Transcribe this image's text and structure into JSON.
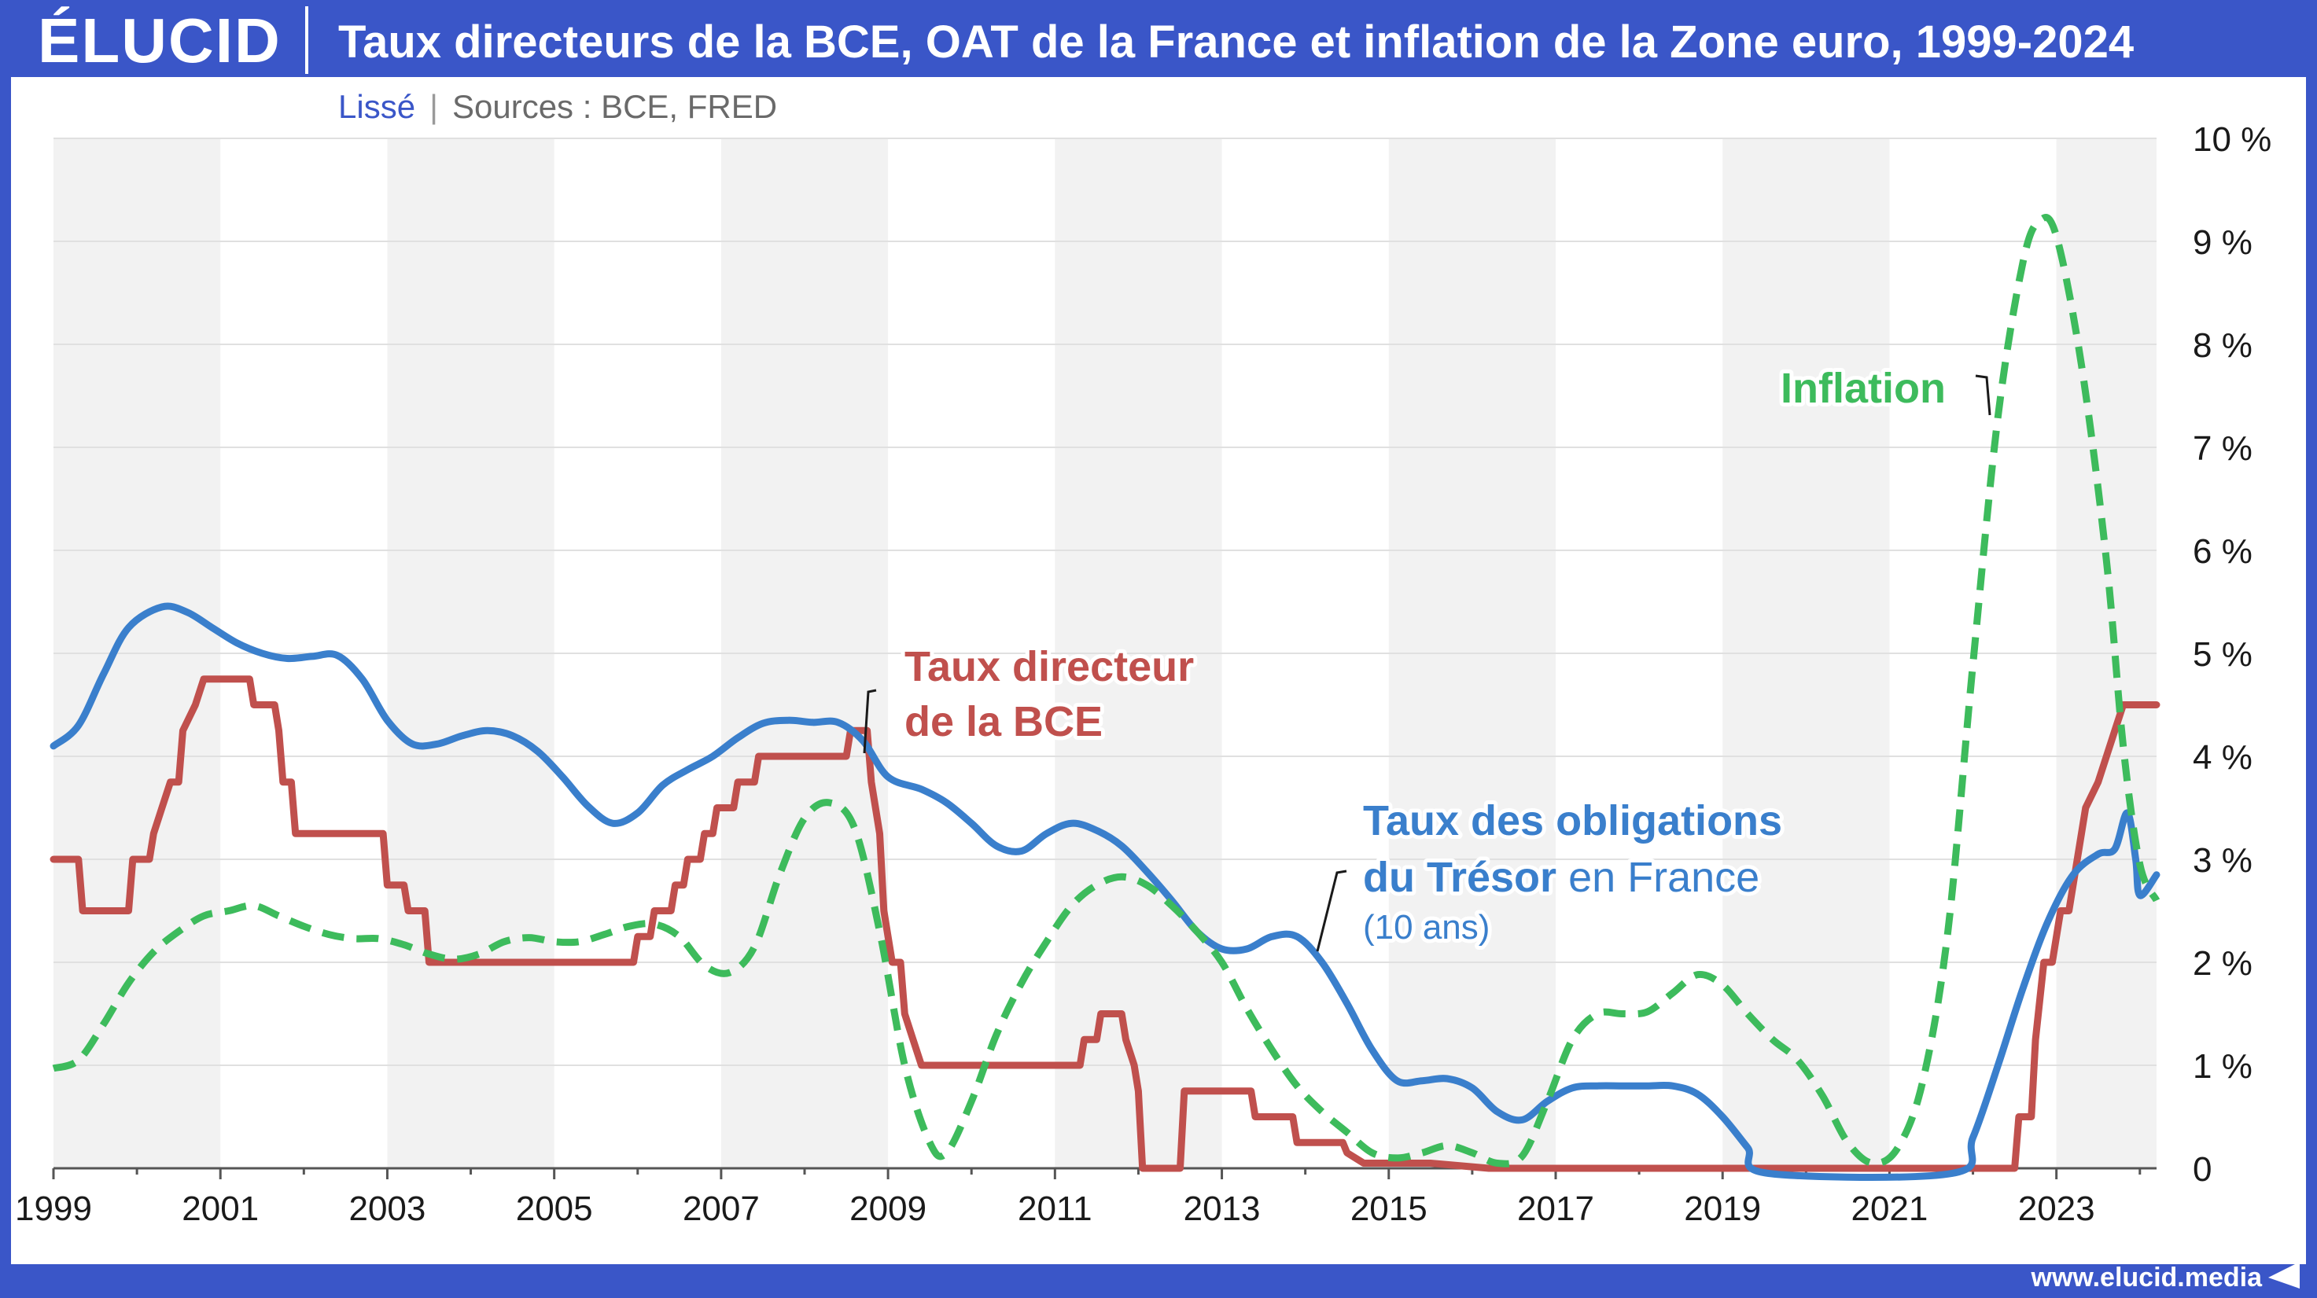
{
  "header": {
    "logo": "ÉLUCID",
    "title": "Taux directeurs de la BCE, OAT de la France et inflation de la Zone euro, 1999-2024"
  },
  "subtitle": {
    "smoothing": "Lissé",
    "sources": "Sources : BCE, FRED"
  },
  "footer": {
    "url": "www.elucid.media"
  },
  "colors": {
    "brand": "#3a56c8",
    "ecb": "#c0504d",
    "oat": "#3a7fcc",
    "inflation": "#3dbb5c",
    "band": "#f2f2f2"
  },
  "annotations": {
    "ecb_line1": "Taux directeur",
    "ecb_line2": "de la BCE",
    "oat_line1": "Taux des obligations",
    "oat_line2_bold": "du Trésor",
    "oat_line2_rest": " en France",
    "oat_line3": "(10 ans)",
    "inflation": "Inflation"
  },
  "chart_data": {
    "type": "line",
    "title": "Taux directeurs de la BCE, OAT de la France et inflation de la Zone euro, 1999-2024",
    "x_ticks": [
      "1999",
      "2001",
      "2003",
      "2005",
      "2007",
      "2009",
      "2011",
      "2013",
      "2015",
      "2017",
      "2019",
      "2021",
      "2023"
    ],
    "y_ticks": [
      "0",
      "1 %",
      "2 %",
      "3 %",
      "4 %",
      "5 %",
      "6 %",
      "7 %",
      "8 %",
      "9 %",
      "10 %"
    ],
    "xlim": [
      1999,
      2024.2
    ],
    "ylim": [
      0,
      10
    ],
    "y_axis_side": "right",
    "grid": "horizontal",
    "series": [
      {
        "name": "Taux directeur de la BCE",
        "style": "step",
        "points": [
          [
            1999,
            3.0
          ],
          [
            1999.3,
            3.0
          ],
          [
            1999.35,
            2.5
          ],
          [
            1999.9,
            2.5
          ],
          [
            1999.95,
            3.0
          ],
          [
            2000.15,
            3.0
          ],
          [
            2000.2,
            3.25
          ],
          [
            2000.3,
            3.5
          ],
          [
            2000.4,
            3.75
          ],
          [
            2000.5,
            3.75
          ],
          [
            2000.55,
            4.25
          ],
          [
            2000.7,
            4.5
          ],
          [
            2000.8,
            4.75
          ],
          [
            2001.35,
            4.75
          ],
          [
            2001.4,
            4.5
          ],
          [
            2001.65,
            4.5
          ],
          [
            2001.7,
            4.25
          ],
          [
            2001.75,
            3.75
          ],
          [
            2001.85,
            3.75
          ],
          [
            2001.9,
            3.25
          ],
          [
            2002.95,
            3.25
          ],
          [
            2003.0,
            2.75
          ],
          [
            2003.2,
            2.75
          ],
          [
            2003.25,
            2.5
          ],
          [
            2003.45,
            2.5
          ],
          [
            2003.5,
            2.0
          ],
          [
            2005.95,
            2.0
          ],
          [
            2006.0,
            2.25
          ],
          [
            2006.15,
            2.25
          ],
          [
            2006.2,
            2.5
          ],
          [
            2006.4,
            2.5
          ],
          [
            2006.45,
            2.75
          ],
          [
            2006.55,
            2.75
          ],
          [
            2006.6,
            3.0
          ],
          [
            2006.75,
            3.0
          ],
          [
            2006.8,
            3.25
          ],
          [
            2006.9,
            3.25
          ],
          [
            2006.95,
            3.5
          ],
          [
            2007.15,
            3.5
          ],
          [
            2007.2,
            3.75
          ],
          [
            2007.4,
            3.75
          ],
          [
            2007.45,
            4.0
          ],
          [
            2008.5,
            4.0
          ],
          [
            2008.55,
            4.25
          ],
          [
            2008.75,
            4.25
          ],
          [
            2008.8,
            3.75
          ],
          [
            2008.9,
            3.25
          ],
          [
            2008.95,
            2.5
          ],
          [
            2009.05,
            2.0
          ],
          [
            2009.15,
            2.0
          ],
          [
            2009.2,
            1.5
          ],
          [
            2009.3,
            1.25
          ],
          [
            2009.4,
            1.0
          ],
          [
            2011.3,
            1.0
          ],
          [
            2011.35,
            1.25
          ],
          [
            2011.5,
            1.25
          ],
          [
            2011.55,
            1.5
          ],
          [
            2011.8,
            1.5
          ],
          [
            2011.85,
            1.25
          ],
          [
            2011.95,
            1.0
          ],
          [
            2012.0,
            0.75
          ],
          [
            2012.05,
            0.0
          ],
          [
            2012.5,
            0.0
          ],
          [
            2012.55,
            0.75
          ],
          [
            2013.35,
            0.75
          ],
          [
            2013.4,
            0.5
          ],
          [
            2013.85,
            0.5
          ],
          [
            2013.9,
            0.25
          ],
          [
            2014.45,
            0.25
          ],
          [
            2014.5,
            0.15
          ],
          [
            2014.7,
            0.05
          ],
          [
            2015.5,
            0.05
          ],
          [
            2016.2,
            0.0
          ],
          [
            2022.5,
            0.0
          ],
          [
            2022.55,
            0.5
          ],
          [
            2022.7,
            0.5
          ],
          [
            2022.75,
            1.25
          ],
          [
            2022.85,
            2.0
          ],
          [
            2022.95,
            2.0
          ],
          [
            2023.05,
            2.5
          ],
          [
            2023.15,
            2.5
          ],
          [
            2023.25,
            3.0
          ],
          [
            2023.35,
            3.5
          ],
          [
            2023.5,
            3.75
          ],
          [
            2023.6,
            4.0
          ],
          [
            2023.7,
            4.25
          ],
          [
            2023.8,
            4.5
          ],
          [
            2024.2,
            4.5
          ]
        ]
      },
      {
        "name": "Taux des obligations du Trésor en France (10 ans)",
        "style": "smooth",
        "points": [
          [
            1999,
            4.1
          ],
          [
            1999.3,
            4.3
          ],
          [
            1999.6,
            4.8
          ],
          [
            1999.9,
            5.25
          ],
          [
            2000.3,
            5.45
          ],
          [
            2000.6,
            5.4
          ],
          [
            2000.9,
            5.25
          ],
          [
            2001.2,
            5.1
          ],
          [
            2001.5,
            5.0
          ],
          [
            2001.8,
            4.95
          ],
          [
            2002.1,
            4.97
          ],
          [
            2002.4,
            4.98
          ],
          [
            2002.7,
            4.75
          ],
          [
            2003.0,
            4.35
          ],
          [
            2003.3,
            4.12
          ],
          [
            2003.6,
            4.12
          ],
          [
            2003.9,
            4.2
          ],
          [
            2004.2,
            4.25
          ],
          [
            2004.5,
            4.2
          ],
          [
            2004.8,
            4.05
          ],
          [
            2005.1,
            3.8
          ],
          [
            2005.4,
            3.52
          ],
          [
            2005.7,
            3.35
          ],
          [
            2006.0,
            3.45
          ],
          [
            2006.3,
            3.72
          ],
          [
            2006.6,
            3.87
          ],
          [
            2006.9,
            4.0
          ],
          [
            2007.2,
            4.18
          ],
          [
            2007.5,
            4.32
          ],
          [
            2007.8,
            4.35
          ],
          [
            2008.1,
            4.33
          ],
          [
            2008.4,
            4.33
          ],
          [
            2008.7,
            4.15
          ],
          [
            2009.0,
            3.8
          ],
          [
            2009.4,
            3.68
          ],
          [
            2009.7,
            3.55
          ],
          [
            2010.0,
            3.35
          ],
          [
            2010.3,
            3.13
          ],
          [
            2010.6,
            3.08
          ],
          [
            2010.9,
            3.25
          ],
          [
            2011.2,
            3.35
          ],
          [
            2011.5,
            3.28
          ],
          [
            2011.8,
            3.13
          ],
          [
            2012.1,
            2.88
          ],
          [
            2012.4,
            2.6
          ],
          [
            2012.7,
            2.3
          ],
          [
            2013.0,
            2.13
          ],
          [
            2013.3,
            2.13
          ],
          [
            2013.6,
            2.25
          ],
          [
            2013.9,
            2.25
          ],
          [
            2014.2,
            2.0
          ],
          [
            2014.5,
            1.6
          ],
          [
            2014.8,
            1.15
          ],
          [
            2015.1,
            0.85
          ],
          [
            2015.4,
            0.85
          ],
          [
            2015.7,
            0.87
          ],
          [
            2016.0,
            0.78
          ],
          [
            2016.3,
            0.55
          ],
          [
            2016.6,
            0.47
          ],
          [
            2016.9,
            0.65
          ],
          [
            2017.2,
            0.78
          ],
          [
            2017.5,
            0.8
          ],
          [
            2017.8,
            0.8
          ],
          [
            2018.1,
            0.8
          ],
          [
            2018.4,
            0.8
          ],
          [
            2018.7,
            0.72
          ],
          [
            2019.0,
            0.5
          ],
          [
            2019.3,
            0.2
          ],
          [
            2019.55,
            -0.05
          ],
          [
            2021.75,
            -0.05
          ],
          [
            2022.0,
            0.3
          ],
          [
            2022.3,
            1.0
          ],
          [
            2022.6,
            1.75
          ],
          [
            2022.9,
            2.4
          ],
          [
            2023.2,
            2.85
          ],
          [
            2023.5,
            3.05
          ],
          [
            2023.7,
            3.1
          ],
          [
            2023.85,
            3.45
          ],
          [
            2023.95,
            3.0
          ],
          [
            2024.0,
            2.65
          ],
          [
            2024.2,
            2.85
          ]
        ]
      },
      {
        "name": "Inflation",
        "style": "smooth-dashed",
        "points": [
          [
            1999,
            0.97
          ],
          [
            1999.3,
            1.05
          ],
          [
            1999.6,
            1.4
          ],
          [
            1999.9,
            1.8
          ],
          [
            2000.2,
            2.1
          ],
          [
            2000.5,
            2.3
          ],
          [
            2000.8,
            2.45
          ],
          [
            2001.1,
            2.5
          ],
          [
            2001.4,
            2.55
          ],
          [
            2001.7,
            2.45
          ],
          [
            2002.0,
            2.35
          ],
          [
            2002.3,
            2.27
          ],
          [
            2002.6,
            2.23
          ],
          [
            2002.9,
            2.23
          ],
          [
            2003.2,
            2.17
          ],
          [
            2003.5,
            2.08
          ],
          [
            2003.8,
            2.03
          ],
          [
            2004.1,
            2.08
          ],
          [
            2004.4,
            2.2
          ],
          [
            2004.7,
            2.24
          ],
          [
            2005.0,
            2.2
          ],
          [
            2005.3,
            2.2
          ],
          [
            2005.6,
            2.27
          ],
          [
            2005.9,
            2.35
          ],
          [
            2006.2,
            2.37
          ],
          [
            2006.5,
            2.25
          ],
          [
            2006.8,
            1.97
          ],
          [
            2007.1,
            1.9
          ],
          [
            2007.4,
            2.15
          ],
          [
            2007.7,
            2.85
          ],
          [
            2008.0,
            3.4
          ],
          [
            2008.3,
            3.55
          ],
          [
            2008.6,
            3.3
          ],
          [
            2008.9,
            2.3
          ],
          [
            2009.2,
            1.0
          ],
          [
            2009.5,
            0.25
          ],
          [
            2009.7,
            0.15
          ],
          [
            2010.0,
            0.65
          ],
          [
            2010.3,
            1.3
          ],
          [
            2010.6,
            1.8
          ],
          [
            2010.9,
            2.2
          ],
          [
            2011.2,
            2.55
          ],
          [
            2011.5,
            2.75
          ],
          [
            2011.8,
            2.83
          ],
          [
            2012.1,
            2.75
          ],
          [
            2012.4,
            2.55
          ],
          [
            2012.7,
            2.3
          ],
          [
            2013.0,
            2.0
          ],
          [
            2013.3,
            1.55
          ],
          [
            2013.6,
            1.15
          ],
          [
            2013.9,
            0.8
          ],
          [
            2014.2,
            0.55
          ],
          [
            2014.5,
            0.35
          ],
          [
            2014.8,
            0.15
          ],
          [
            2015.1,
            0.1
          ],
          [
            2015.4,
            0.15
          ],
          [
            2015.7,
            0.22
          ],
          [
            2016.0,
            0.15
          ],
          [
            2016.3,
            0.05
          ],
          [
            2016.6,
            0.12
          ],
          [
            2016.9,
            0.65
          ],
          [
            2017.2,
            1.25
          ],
          [
            2017.5,
            1.5
          ],
          [
            2017.8,
            1.5
          ],
          [
            2018.1,
            1.52
          ],
          [
            2018.4,
            1.7
          ],
          [
            2018.7,
            1.88
          ],
          [
            2019.0,
            1.78
          ],
          [
            2019.3,
            1.5
          ],
          [
            2019.6,
            1.25
          ],
          [
            2019.9,
            1.05
          ],
          [
            2020.2,
            0.7
          ],
          [
            2020.5,
            0.25
          ],
          [
            2020.8,
            0.05
          ],
          [
            2021.1,
            0.2
          ],
          [
            2021.4,
            0.85
          ],
          [
            2021.7,
            2.3
          ],
          [
            2022.0,
            4.9
          ],
          [
            2022.3,
            7.3
          ],
          [
            2022.6,
            8.8
          ],
          [
            2022.8,
            9.2
          ],
          [
            2023.0,
            9.05
          ],
          [
            2023.3,
            7.8
          ],
          [
            2023.6,
            5.9
          ],
          [
            2023.8,
            4.1
          ],
          [
            2024.0,
            2.95
          ],
          [
            2024.2,
            2.6
          ]
        ]
      }
    ]
  }
}
